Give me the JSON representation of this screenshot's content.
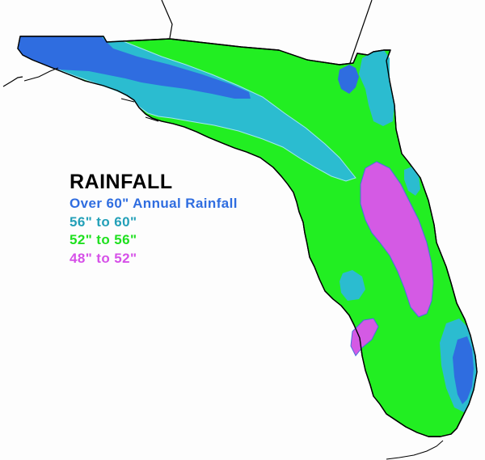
{
  "map": {
    "legend": {
      "title": "RAINFALL",
      "items": [
        {
          "label": "Over 60\" Annual Rainfall",
          "color": "#2f6de0"
        },
        {
          "label": "56\" to 60\"",
          "color": "#23a0b8"
        },
        {
          "label": "52\" to 56\"",
          "color": "#1fe01f"
        },
        {
          "label": "48\" to 52\"",
          "color": "#d650e8"
        }
      ]
    },
    "fill_colors": {
      "over_60": "#2f6de0",
      "56_to_60": "#2bbcd0",
      "52_to_56": "#22ee22",
      "48_to_52": "#d45ae4",
      "outline": "#000000",
      "background": "#fdfdfd"
    }
  }
}
